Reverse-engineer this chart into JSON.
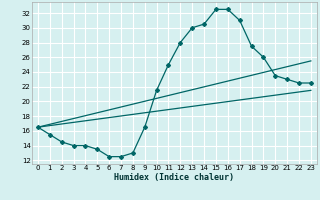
{
  "xlabel": "Humidex (Indice chaleur)",
  "bg_color": "#d6f0f0",
  "grid_color": "#ffffff",
  "line_color": "#006666",
  "xlim": [
    -0.5,
    23.5
  ],
  "ylim": [
    11.5,
    33.5
  ],
  "xticks": [
    0,
    1,
    2,
    3,
    4,
    5,
    6,
    7,
    8,
    9,
    10,
    11,
    12,
    13,
    14,
    15,
    16,
    17,
    18,
    19,
    20,
    21,
    22,
    23
  ],
  "yticks": [
    12,
    14,
    16,
    18,
    20,
    22,
    24,
    26,
    28,
    30,
    32
  ],
  "curve1_x": [
    0,
    1,
    2,
    3,
    4,
    5,
    6,
    7,
    8,
    9,
    10,
    11,
    12,
    13,
    14,
    15,
    16,
    17,
    18,
    19,
    20,
    21,
    22,
    23
  ],
  "curve1_y": [
    16.5,
    15.5,
    14.5,
    14.0,
    14.0,
    13.5,
    12.5,
    12.5,
    13.0,
    16.5,
    21.5,
    25.0,
    28.0,
    30.0,
    30.5,
    32.5,
    32.5,
    31.0,
    27.5,
    26.0,
    23.5,
    23.0,
    22.5,
    22.5
  ],
  "line2_x": [
    0,
    23
  ],
  "line2_y": [
    16.5,
    25.5
  ],
  "line3_x": [
    0,
    23
  ],
  "line3_y": [
    16.5,
    21.5
  ],
  "xlabel_fontsize": 6.0,
  "tick_fontsize": 5.0
}
